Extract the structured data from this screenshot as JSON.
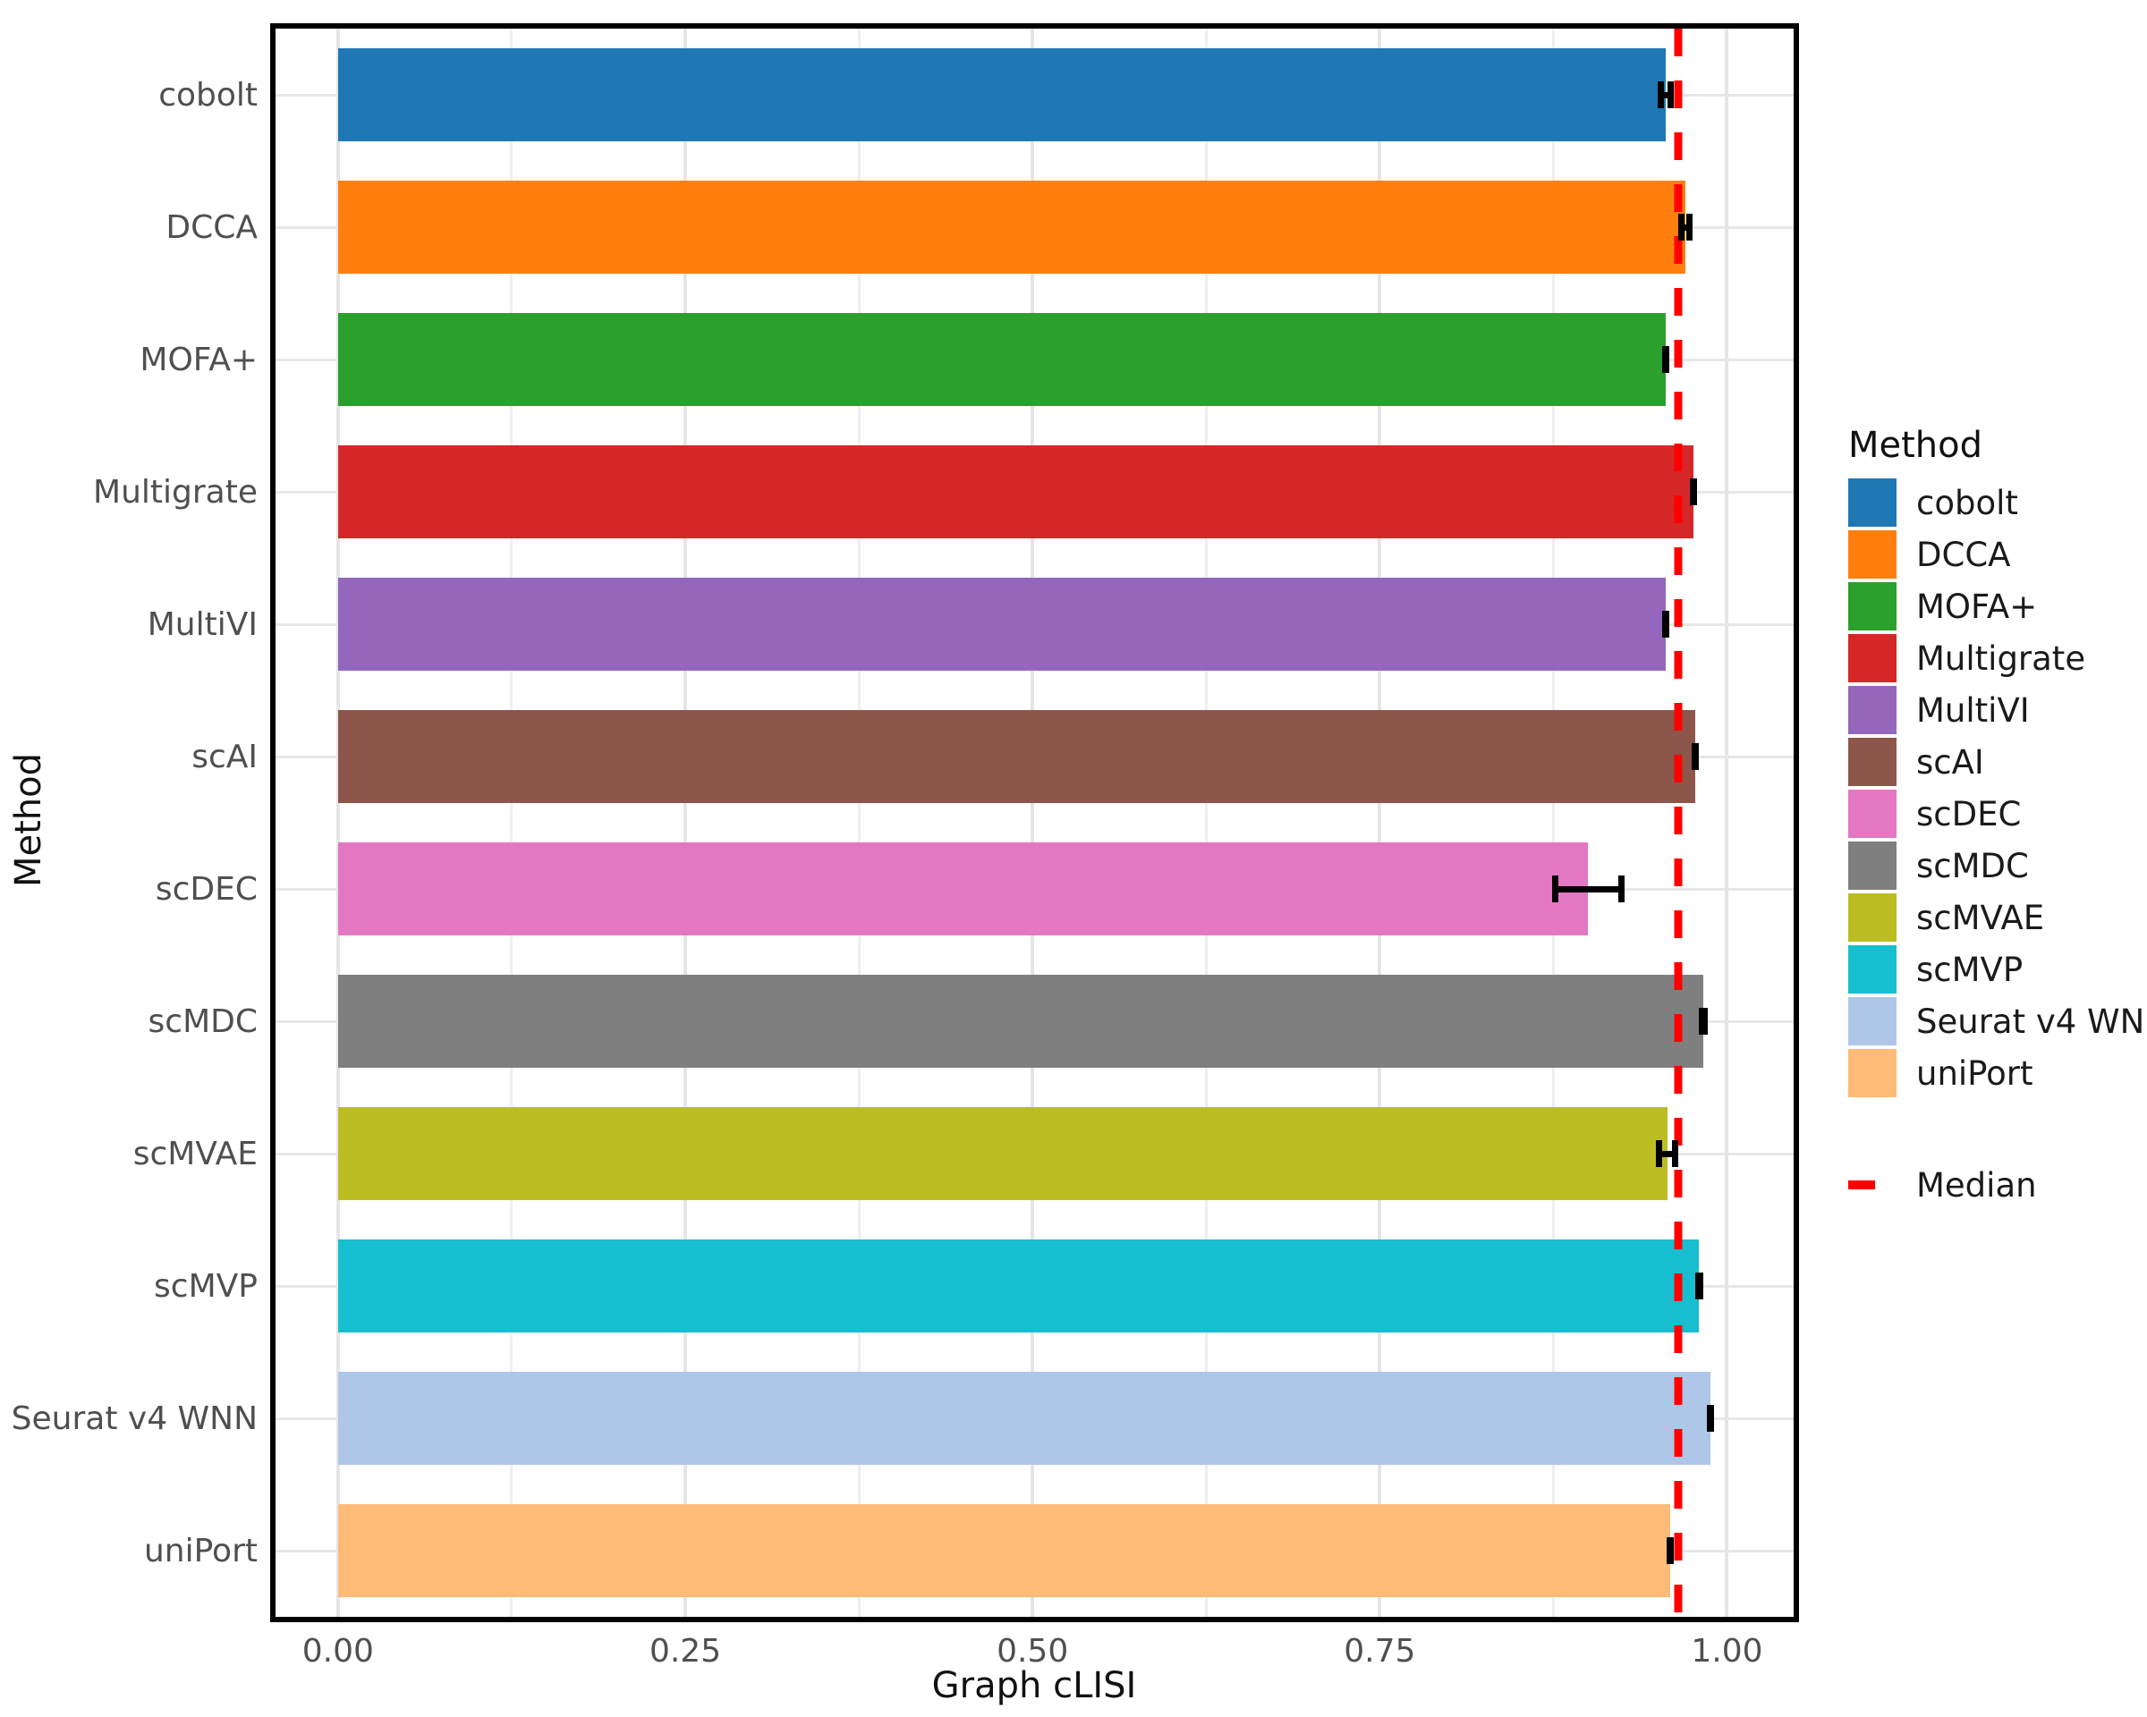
{
  "chart_data": {
    "type": "bar",
    "orientation": "horizontal",
    "title": "",
    "xlabel": "Graph cLISI",
    "ylabel": "Method",
    "categories": [
      "cobolt",
      "DCCA",
      "MOFA+",
      "Multigrate",
      "MultiVI",
      "scAI",
      "scDEC",
      "scMDC",
      "scMVAE",
      "scMVP",
      "Seurat v4 WNN",
      "uniPort"
    ],
    "values": [
      0.956,
      0.97,
      0.956,
      0.976,
      0.956,
      0.977,
      0.9,
      0.983,
      0.957,
      0.98,
      0.988,
      0.959
    ],
    "errors": [
      0.006,
      0.005,
      0.002,
      0.002,
      0.002,
      0.002,
      0.026,
      0.003,
      0.008,
      0.003,
      0.002,
      0.002
    ],
    "colors": [
      "#1f77b4",
      "#ff7f0e",
      "#2ca02c",
      "#d62728",
      "#9467bd",
      "#8c564b",
      "#e377c2",
      "#7f7f7f",
      "#bcbd22",
      "#17becf",
      "#aec7e8",
      "#ffbb78"
    ],
    "error_bar_color": "#000000",
    "xlim": [
      -0.045,
      1.048
    ],
    "x_ticks": {
      "values": [
        0,
        0.25,
        0.5,
        0.75,
        1.0
      ],
      "labels": [
        "0.00",
        "0.25",
        "0.50",
        "0.75",
        "1.00"
      ]
    },
    "x_minor_ticks": [
      0.125,
      0.375,
      0.625,
      0.875
    ],
    "grid": true,
    "median_line": {
      "value": 0.965,
      "color": "#ff0000",
      "label": "Median"
    },
    "legend": {
      "title": "Method",
      "position": "right"
    }
  }
}
